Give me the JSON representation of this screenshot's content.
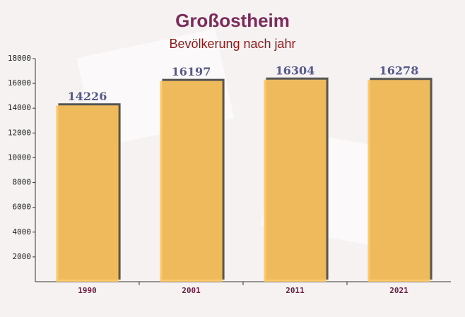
{
  "chart_data": {
    "type": "bar",
    "title": "Großostheim",
    "subtitle": "Bevölkerung nach jahr",
    "categories": [
      "1990",
      "2001",
      "2011",
      "2021"
    ],
    "values": [
      14226,
      16197,
      16304,
      16278
    ],
    "color": "#ffc55c",
    "ylim": [
      0,
      18000
    ],
    "yticks": [
      2000,
      4000,
      6000,
      8000,
      10000,
      12000,
      14000,
      16000,
      18000
    ],
    "grid": false
  }
}
